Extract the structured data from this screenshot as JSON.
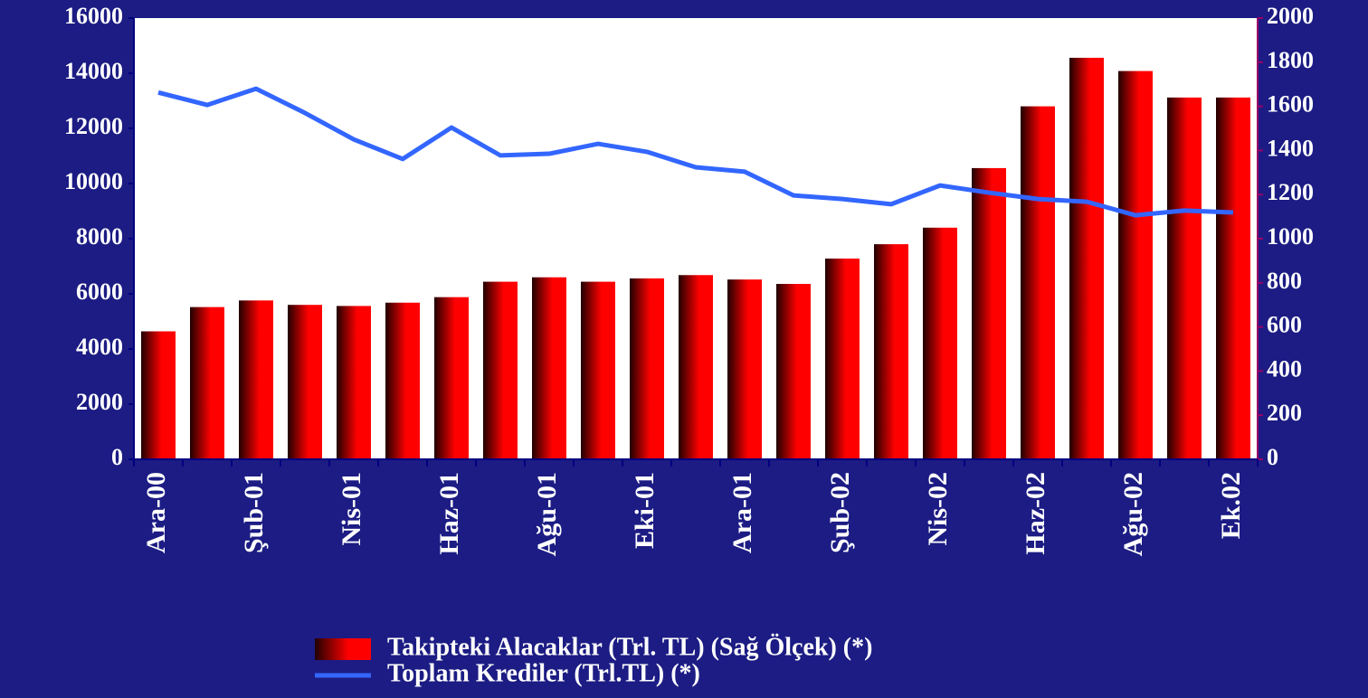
{
  "chart_data": {
    "type": "bar-line",
    "categories": [
      "Ara-00",
      null,
      "Şub-01",
      null,
      "Nis-01",
      null,
      "Haz-01",
      null,
      "Ağu-01",
      null,
      "Eki-01",
      null,
      "Ara-01",
      null,
      "Şub-02",
      null,
      "Nis-02",
      null,
      "Haz-02",
      null,
      "Ağu-02",
      null,
      "Ek.02"
    ],
    "series": [
      {
        "name": "Takipteki Alacaklar (Trl. TL) (Sağ Ölçek) (*)",
        "type": "bar",
        "axis": "y2",
        "color": "#ff0000",
        "values": [
          580,
          690,
          720,
          700,
          695,
          710,
          735,
          805,
          825,
          805,
          820,
          835,
          815,
          795,
          910,
          975,
          1050,
          1320,
          1600,
          1820,
          1760,
          1640,
          1640
        ]
      },
      {
        "name": "Toplam Krediler (Trl.TL) (*)",
        "type": "line",
        "axis": "y",
        "color": "#3366ff",
        "values": [
          13300,
          12850,
          13440,
          12560,
          11600,
          10890,
          12030,
          11020,
          11080,
          11440,
          11150,
          10590,
          10430,
          9570,
          9440,
          9250,
          9930,
          9670,
          9440,
          9340,
          8850,
          9020,
          8950
        ]
      }
    ],
    "ylim": [
      0,
      16000
    ],
    "yticks": [
      0,
      2000,
      4000,
      6000,
      8000,
      10000,
      12000,
      14000,
      16000
    ],
    "y2lim": [
      0,
      2000
    ],
    "y2ticks": [
      0,
      200,
      400,
      600,
      800,
      1000,
      1200,
      1400,
      1600,
      1800,
      2000
    ],
    "grid": false
  }
}
